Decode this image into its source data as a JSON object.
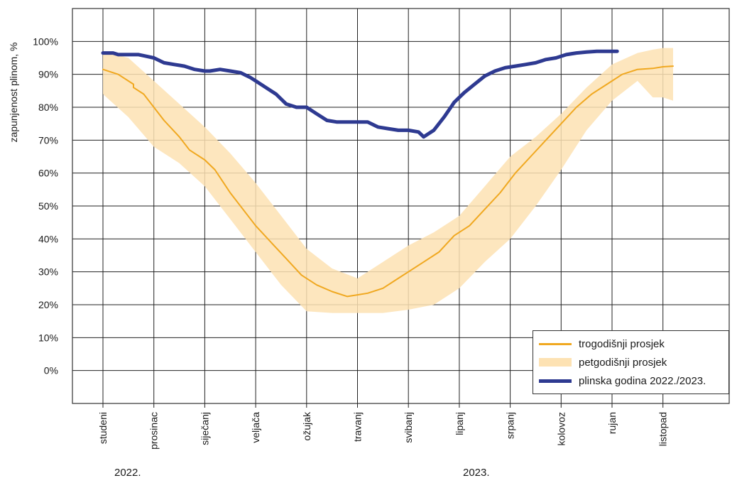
{
  "chart_data": {
    "type": "line",
    "ylabel": "zapunjenost plinom, %",
    "ylim": [
      -10,
      110
    ],
    "yticks": [
      0,
      10,
      20,
      30,
      40,
      50,
      60,
      70,
      80,
      90,
      100
    ],
    "ytick_labels": [
      "0%",
      "10%",
      "20%",
      "30%",
      "40%",
      "50%",
      "60%",
      "70%",
      "80%",
      "90%",
      "100%"
    ],
    "xlim": [
      -0.6,
      11.4
    ],
    "categories": [
      "studeni",
      "prosinac",
      "siječanj",
      "veljača",
      "ožujak",
      "travanj",
      "svibanj",
      "lipanj",
      "srpanj",
      "kolovoz",
      "rujan",
      "listopad"
    ],
    "year_labels": [
      {
        "label": "2022.",
        "at": 0.4
      },
      {
        "label": "2023.",
        "at": 6.9
      }
    ],
    "grid": true,
    "legend_position": "bottom-right",
    "series": [
      {
        "name": "trogodišnji prosjek",
        "kind": "line",
        "color": "#f0a820",
        "x": [
          0,
          0.3,
          0.6,
          0.6,
          0.8,
          0.9,
          1.0,
          1.2,
          1.5,
          1.7,
          2.0,
          2.2,
          2.5,
          2.8,
          3.0,
          3.3,
          3.6,
          3.9,
          4.2,
          4.5,
          4.8,
          5.0,
          5.2,
          5.5,
          5.8,
          6.0,
          6.3,
          6.6,
          6.9,
          7.2,
          7.5,
          7.8,
          8.1,
          8.4,
          8.7,
          9.0,
          9.3,
          9.6,
          9.9,
          10.2,
          10.5,
          10.8,
          11.0,
          11.2
        ],
        "y": [
          91.5,
          90,
          87,
          86,
          84,
          82,
          80,
          76,
          71,
          67,
          64,
          61,
          54,
          48,
          44,
          39,
          34,
          29,
          26,
          24,
          22.5,
          23,
          23.5,
          25,
          28,
          30,
          33,
          36,
          41,
          44,
          49,
          54,
          60,
          65,
          70,
          75,
          80,
          84,
          87,
          90,
          91.5,
          91.8,
          92.3,
          92.5
        ]
      },
      {
        "name": "petgodišnji prosjek",
        "kind": "band",
        "color": "#fde2b3",
        "x": [
          0,
          0.5,
          1.0,
          1.5,
          2.0,
          2.5,
          3.0,
          3.5,
          4.0,
          4.5,
          5.0,
          5.5,
          6.0,
          6.5,
          7.0,
          7.5,
          8.0,
          8.5,
          9.0,
          9.5,
          10.0,
          10.5,
          10.8,
          11.0,
          11.2
        ],
        "upper": [
          97,
          95,
          88,
          81,
          74,
          66,
          57,
          47,
          37,
          31,
          28,
          33,
          38,
          42,
          47,
          56,
          65,
          71,
          78,
          86,
          93,
          96.5,
          97.5,
          98,
          98
        ],
        "lower": [
          84,
          77,
          68,
          63,
          56,
          46,
          36,
          26,
          18,
          17.5,
          17.5,
          17.5,
          18.5,
          20,
          25,
          33,
          40,
          50,
          61,
          73,
          82,
          88,
          83,
          83,
          82
        ]
      },
      {
        "name": "plinska godina 2022./2023.",
        "kind": "line",
        "color": "#2e3a91",
        "x": [
          0,
          0.2,
          0.3,
          0.5,
          0.7,
          0.85,
          1.0,
          1.2,
          1.4,
          1.6,
          1.8,
          2.0,
          2.1,
          2.3,
          2.5,
          2.7,
          2.9,
          3.0,
          3.2,
          3.4,
          3.6,
          3.8,
          4.0,
          4.2,
          4.4,
          4.6,
          4.8,
          5.0,
          5.2,
          5.4,
          5.6,
          5.8,
          6.0,
          6.2,
          6.3,
          6.5,
          6.7,
          6.9,
          7.1,
          7.3,
          7.5,
          7.7,
          7.9,
          8.1,
          8.3,
          8.5,
          8.7,
          8.9,
          9.1,
          9.3,
          9.5,
          9.7,
          9.9,
          10.1
        ],
        "y": [
          96.5,
          96.5,
          96,
          96,
          96,
          95.5,
          95,
          93.5,
          93,
          92.5,
          91.5,
          91,
          91,
          91.5,
          91,
          90.5,
          89,
          88,
          86,
          84,
          81,
          80,
          80,
          78,
          76,
          75.5,
          75.5,
          75.5,
          75.5,
          74,
          73.5,
          73,
          73,
          72.5,
          71,
          73,
          77,
          81.5,
          84.5,
          87,
          89.5,
          91,
          92,
          92.5,
          93,
          93.5,
          94.5,
          95,
          96,
          96.5,
          96.8,
          97,
          97,
          97
        ]
      }
    ]
  }
}
